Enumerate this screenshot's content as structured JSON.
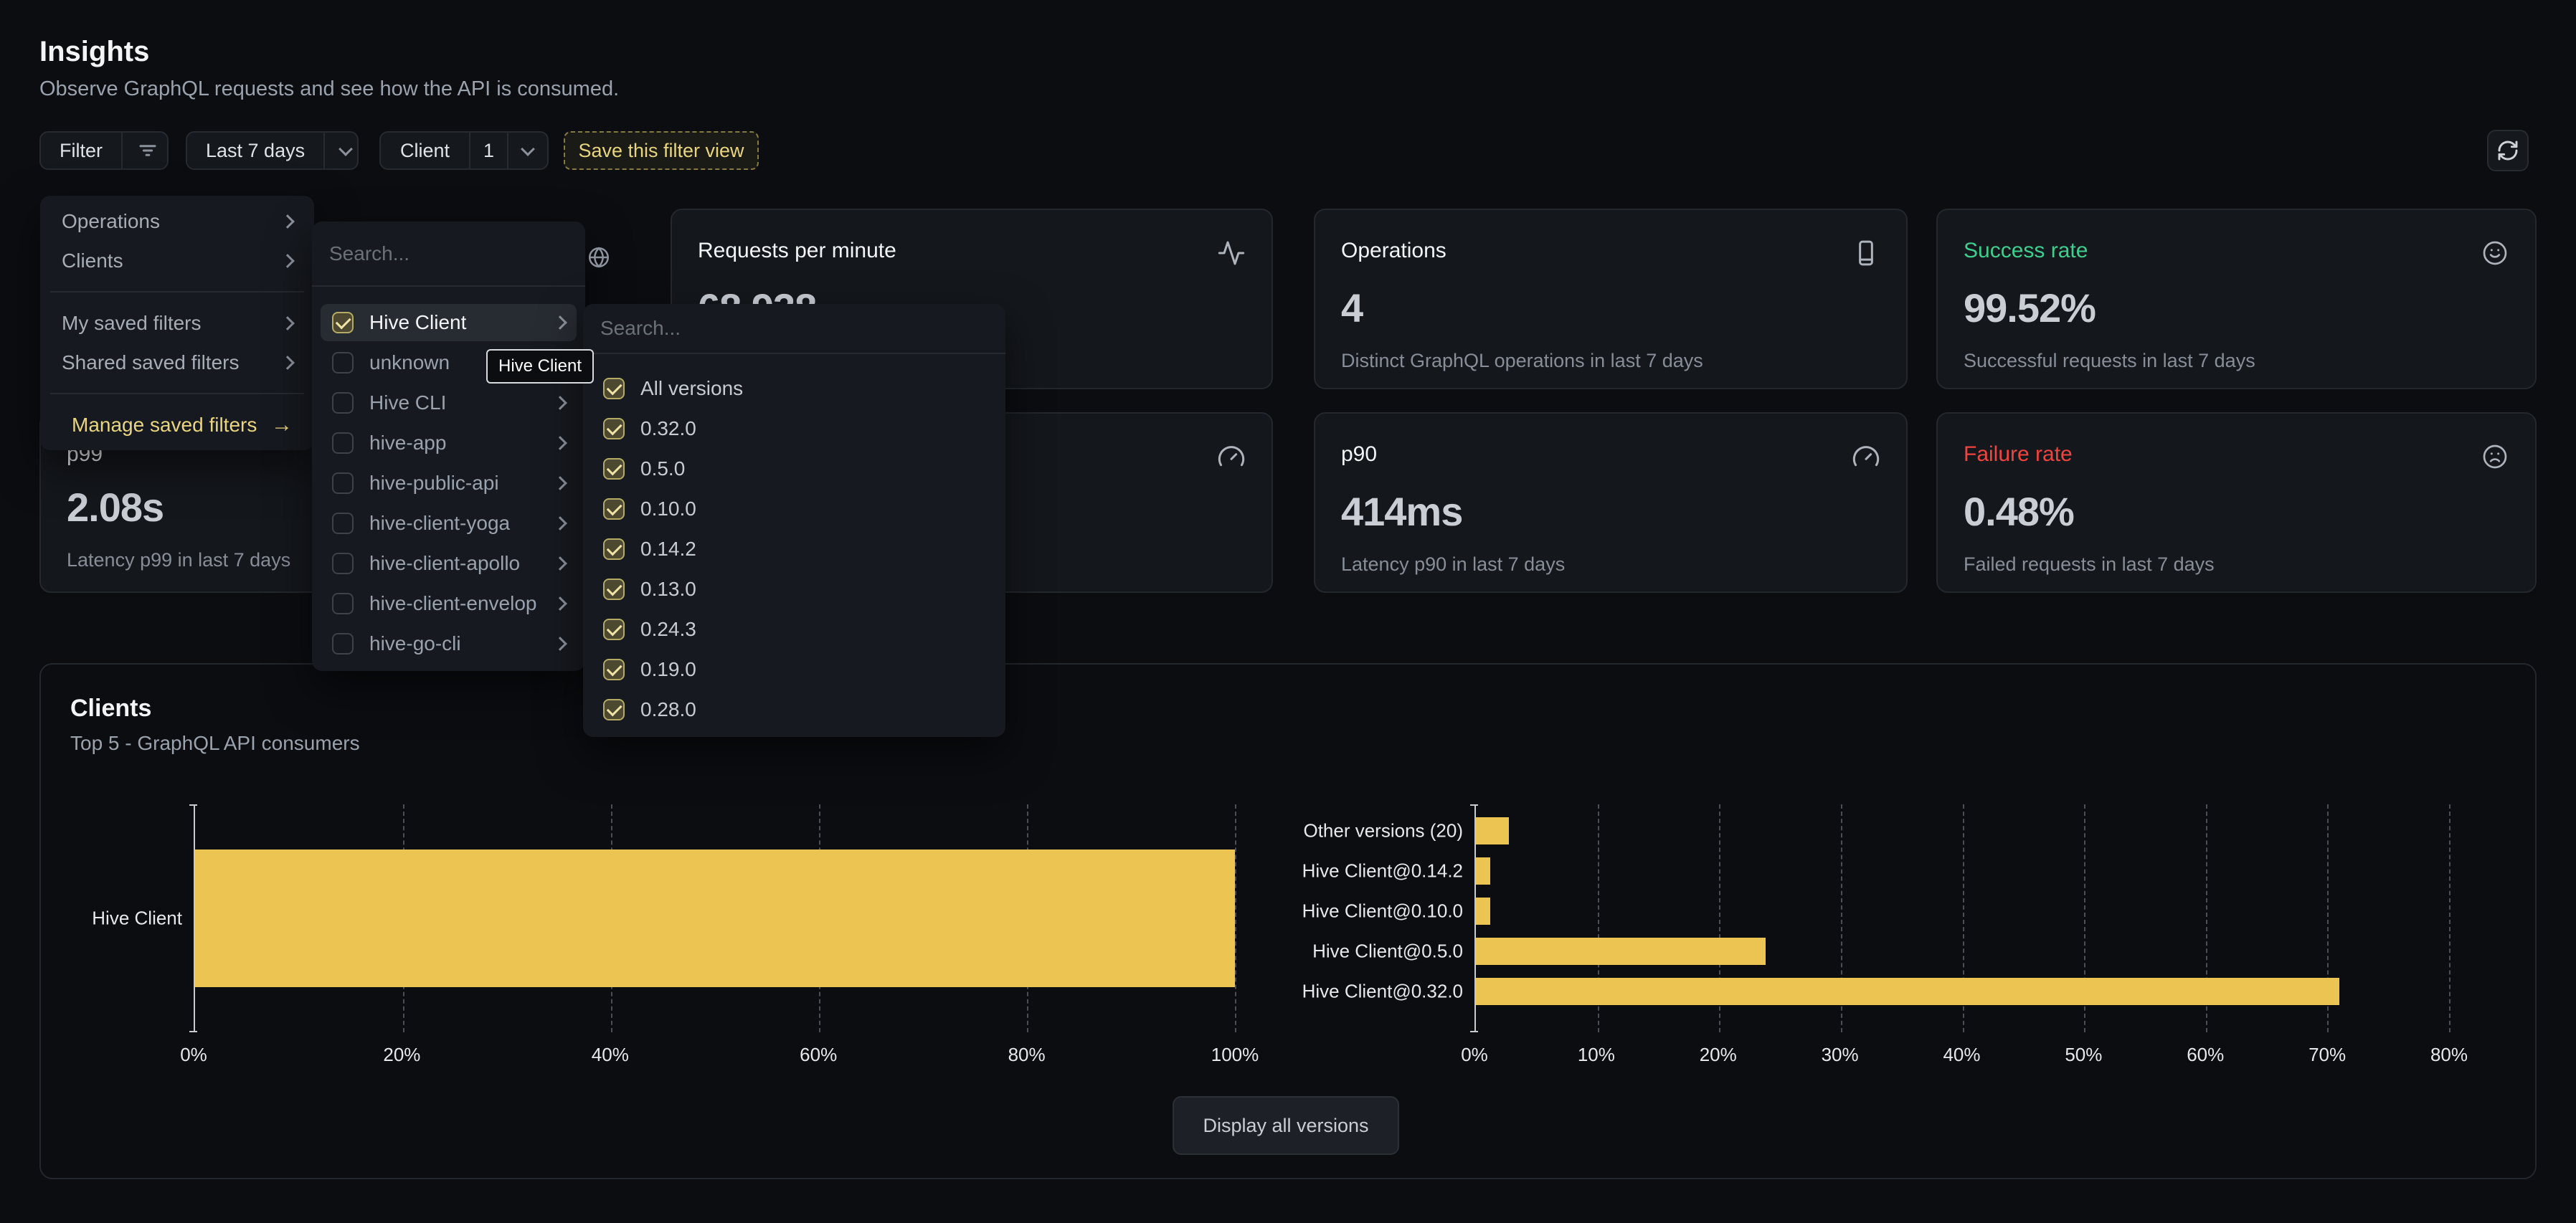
{
  "page": {
    "title": "Insights",
    "subtitle": "Observe GraphQL requests and see how the API is consumed."
  },
  "glyphs": {
    "arrow_right": "→"
  },
  "filter_bar": {
    "filter_label": "Filter",
    "time_range_label": "Last 7 days",
    "client_label": "Client",
    "client_count": "1",
    "save_view_label": "Save this filter view"
  },
  "filter_menu": {
    "primary": [
      {
        "label": "Operations"
      },
      {
        "label": "Clients"
      }
    ],
    "saved": [
      {
        "label": "My saved filters"
      },
      {
        "label": "Shared saved filters"
      }
    ],
    "manage_label": "Manage saved filters"
  },
  "clients_menu": {
    "search_placeholder": "Search...",
    "items": [
      {
        "label": "Hive Client",
        "checked": true
      },
      {
        "label": "unknown",
        "checked": false
      },
      {
        "label": "Hive CLI",
        "checked": false
      },
      {
        "label": "hive-app",
        "checked": false
      },
      {
        "label": "hive-public-api",
        "checked": false
      },
      {
        "label": "hive-client-yoga",
        "checked": false
      },
      {
        "label": "hive-client-apollo",
        "checked": false
      },
      {
        "label": "hive-client-envelop",
        "checked": false
      },
      {
        "label": "hive-go-cli",
        "checked": false
      }
    ]
  },
  "versions_menu": {
    "search_placeholder": "Search...",
    "items": [
      {
        "label": "All versions",
        "checked": true
      },
      {
        "label": "0.32.0",
        "checked": true
      },
      {
        "label": "0.5.0",
        "checked": true
      },
      {
        "label": "0.10.0",
        "checked": true
      },
      {
        "label": "0.14.2",
        "checked": true
      },
      {
        "label": "0.13.0",
        "checked": true
      },
      {
        "label": "0.24.3",
        "checked": true
      },
      {
        "label": "0.19.0",
        "checked": true
      },
      {
        "label": "0.28.0",
        "checked": true
      }
    ]
  },
  "tooltip": {
    "text": "Hive Client"
  },
  "stats": {
    "requests_per_minute": {
      "title": "Requests per minute",
      "value": "68,938",
      "icon": "activity-icon"
    },
    "operations": {
      "title": "Operations",
      "value": "4",
      "description": "Distinct GraphQL operations in last 7 days",
      "icon": "device-icon"
    },
    "success_rate": {
      "title": "Success rate",
      "value": "99.52%",
      "description": "Successful requests in last 7 days",
      "icon": "smiley-icon"
    },
    "p99": {
      "title": "p99",
      "value": "2.08s",
      "description": "Latency p99 in last 7 days"
    },
    "hidden_metric": {
      "icon": "gauge-icon"
    },
    "p90": {
      "title": "p90",
      "value": "414ms",
      "description": "Latency p90 in last 7 days",
      "icon": "gauge-icon"
    },
    "failure_rate": {
      "title": "Failure rate",
      "value": "0.48%",
      "description": "Failed requests in last 7 days",
      "icon": "frowny-icon"
    }
  },
  "clients_section": {
    "title": "Clients",
    "subtitle": "Top 5 - GraphQL API consumers",
    "display_all_label": "Display all versions"
  },
  "chart_data": [
    {
      "type": "bar",
      "orientation": "horizontal",
      "categories": [
        "Hive Client"
      ],
      "values": [
        100
      ],
      "unit": "%",
      "xmax": 100,
      "ticks": [
        0,
        20,
        40,
        60,
        80,
        100
      ],
      "tick_labels": [
        "0%",
        "20%",
        "40%",
        "60%",
        "80%",
        "100%"
      ],
      "grid": "dashed-vertical",
      "bar_color": "#ecc452",
      "layout": {
        "first_center": 159,
        "pitch": 56,
        "thickness": 192
      }
    },
    {
      "type": "bar",
      "orientation": "horizontal",
      "categories": [
        "Other versions (20)",
        "Hive Client@0.14.2",
        "Hive Client@0.10.0",
        "Hive Client@0.5.0",
        "Hive Client@0.32.0"
      ],
      "values": [
        2.7,
        1.2,
        1.2,
        23.8,
        71
      ],
      "unit": "%",
      "xmax": 80,
      "ticks": [
        0,
        10,
        20,
        30,
        40,
        50,
        60,
        70,
        80
      ],
      "tick_labels": [
        "0%",
        "10%",
        "20%",
        "30%",
        "40%",
        "50%",
        "60%",
        "70%",
        "80%"
      ],
      "grid": "dashed-vertical",
      "bar_color": "#ecc452",
      "layout": {
        "first_center": 37,
        "pitch": 56,
        "thickness": 38
      }
    }
  ],
  "colors": {
    "accent_yellow": "#e8d57e",
    "bar_yellow": "#ecc452",
    "success_green": "#3ecf8e",
    "failure_red": "#f0443f",
    "page_bg": "#0b0d11",
    "card_bg": "#14171c",
    "card_border": "#23272e"
  }
}
